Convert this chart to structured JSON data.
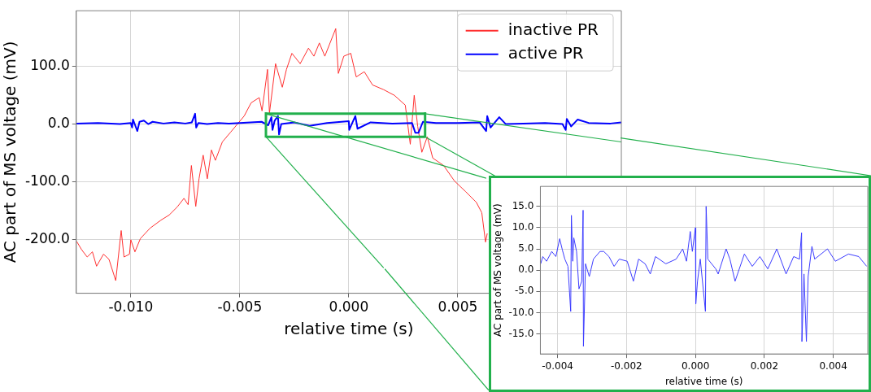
{
  "chart_data": [
    {
      "type": "line",
      "xlabel": "relative time (s)",
      "ylabel": "AC part of MS voltage (mV)",
      "xlim": [
        -0.0125,
        0.0125
      ],
      "ylim": [
        -294,
        197
      ],
      "xticks": [
        {
          "value": -0.01,
          "label": "-0.010"
        },
        {
          "value": -0.005,
          "label": "-0.005"
        },
        {
          "value": 0,
          "label": "0.000"
        },
        {
          "value": 0.005,
          "label": "0.005"
        },
        {
          "value": 0.01,
          "label": null
        }
      ],
      "yticks": [
        {
          "value": -200,
          "label": "-200.0"
        },
        {
          "value": -100,
          "label": "-100.0"
        },
        {
          "value": 0,
          "label": "0.0"
        },
        {
          "value": 100,
          "label": "100.0"
        }
      ],
      "grid": true,
      "legend": "top right",
      "series": [
        {
          "name": "inactive PR",
          "color": "#ff3030",
          "x": [
            -0.01248,
            -0.01226,
            -0.012,
            -0.01176,
            -0.01157,
            -0.01125,
            -0.011,
            -0.01069,
            -0.01044,
            -0.01031,
            -0.01006,
            -0.01,
            -0.00981,
            -0.00956,
            -0.00912,
            -0.00862,
            -0.00824,
            -0.00787,
            -0.00756,
            -0.00737,
            -0.00722,
            -0.00702,
            -0.00687,
            -0.00668,
            -0.00649,
            -0.0063,
            -0.00612,
            -0.0058,
            -0.00542,
            -0.00511,
            -0.0048,
            -0.00448,
            -0.00411,
            -0.00398,
            -0.00373,
            -0.00364,
            -0.00336,
            -0.00305,
            -0.00286,
            -0.00261,
            -0.00223,
            -0.00185,
            -0.0016,
            -0.00135,
            -0.0011,
            -0.0006,
            -0.00048,
            -0.00023,
            9e-05,
            0.00034,
            0.00071,
            0.00109,
            0.00159,
            0.00209,
            0.00259,
            0.00282,
            0.003,
            0.00316,
            0.00335,
            0.0036,
            0.00385,
            0.00435,
            0.00485,
            0.00535,
            0.00585,
            0.0061,
            0.00627,
            0.00635
          ],
          "values": [
            -204,
            -218,
            -231,
            -222,
            -247,
            -226,
            -235,
            -272,
            -185,
            -231,
            -226,
            -201,
            -222,
            -199,
            -181,
            -167,
            -158,
            -144,
            -129,
            -140,
            -72,
            -143,
            -95,
            -54,
            -95,
            -45,
            -63,
            -31,
            -14,
            0,
            14,
            37,
            46,
            23,
            95,
            19,
            105,
            64,
            95,
            123,
            105,
            132,
            118,
            141,
            118,
            166,
            88,
            118,
            123,
            82,
            91,
            68,
            60,
            50,
            33,
            -35,
            50,
            -4,
            -49,
            -22,
            -59,
            -72,
            -99,
            -117,
            -136,
            -154,
            -205,
            -190
          ]
        },
        {
          "name": "active PR",
          "color": "#0000ff",
          "x": [
            -0.0125,
            -0.0115,
            -0.0105,
            -0.01,
            -0.00994,
            -0.0099,
            -0.0098,
            -0.0097,
            -0.0096,
            -0.0094,
            -0.0092,
            -0.009,
            -0.0085,
            -0.008,
            -0.0075,
            -0.0072,
            -0.00705,
            -0.007,
            -0.0069,
            -0.0065,
            -0.006,
            -0.0055,
            -0.005,
            -0.0045,
            -0.004,
            -0.0037,
            -0.00355,
            -0.0035,
            -0.0034,
            -0.00325,
            -0.0032,
            -0.0031,
            -0.0025,
            -0.0018,
            -0.001,
            0,
            2e-05,
            0.0003,
            0.0004,
            0.001,
            0.002,
            0.0029,
            0.00305,
            0.0032,
            0.0034,
            0.004,
            0.005,
            0.006,
            0.0063,
            0.00635,
            0.0065,
            0.0069,
            0.0072,
            0.008,
            0.009,
            0.0098,
            0.00995,
            0.01,
            0.0102,
            0.0105,
            0.011,
            0.012,
            0.0125
          ],
          "values": [
            1,
            2,
            0,
            2,
            -6,
            8,
            -2,
            -12,
            4,
            6,
            0,
            4,
            1,
            3,
            1,
            3,
            18,
            -6,
            2,
            0,
            2,
            1,
            2,
            3,
            4,
            -2,
            12,
            -10,
            6,
            14,
            -18,
            0,
            3,
            -3,
            2,
            5,
            -10,
            14,
            -8,
            3,
            1,
            2,
            -15,
            -15,
            4,
            2,
            2,
            3,
            -12,
            14,
            -6,
            12,
            0,
            1,
            2,
            0,
            -10,
            9,
            -4,
            8,
            2,
            1,
            3
          ]
        },
        {
          "color": "#22b04c",
          "x": [
            -0.0038,
            0.0035
          ],
          "values": [
            18,
            18
          ]
        },
        {
          "color": "#22b04c",
          "x": [
            -0.0038,
            0.0035
          ],
          "values": [
            -22,
            -22
          ]
        },
        {
          "color": "#22b04c",
          "x": [
            -0.0038,
            0.0063
          ],
          "values": [
            18,
            -94
          ]
        },
        {
          "color": "#22b04c",
          "x": [
            -0.0038,
            0.0016
          ],
          "values": [
            -22,
            -250
          ]
        },
        {
          "color": "#22b04c",
          "x": [
            0.0035,
            0.0125
          ],
          "values": [
            18,
            -31
          ]
        },
        {
          "color": "#22b04c",
          "x": [
            0.0035,
            0.0068
          ],
          "values": [
            -22,
            -92
          ]
        }
      ]
    },
    {
      "type": "line",
      "xlabel": "relative time (s)",
      "ylabel": "AC part of MS voltage (mV)",
      "xlim": [
        -0.0045,
        0.005
      ],
      "ylim": [
        -19.7,
        19.7
      ],
      "xticks": [
        {
          "value": -0.004,
          "label": "-0.004"
        },
        {
          "value": -0.002,
          "label": "-0.002"
        },
        {
          "value": 0,
          "label": "0.000"
        },
        {
          "value": 0.002,
          "label": "0.002"
        },
        {
          "value": 0.004,
          "label": "0.004"
        }
      ],
      "yticks": [
        {
          "value": -15,
          "label": "-15.0"
        },
        {
          "value": -10,
          "label": "-10.0"
        },
        {
          "value": -5,
          "label": "-5.0"
        },
        {
          "value": 0,
          "label": "0.0"
        },
        {
          "value": 5,
          "label": "5.0"
        },
        {
          "value": 10,
          "label": "10.0"
        },
        {
          "value": 15,
          "label": "15.0"
        }
      ],
      "grid": true,
      "series": [
        {
          "color": "#3c3cff",
          "x": [
            -0.00449,
            -0.00443,
            -0.00432,
            -0.00417,
            -0.00405,
            -0.00394,
            -0.00386,
            -0.00379,
            -0.0037,
            -0.00362,
            -0.0036,
            -0.00356,
            -0.00353,
            -0.00345,
            -0.00338,
            -0.0033,
            -0.00326,
            -0.00325,
            -0.00319,
            -0.00308,
            -0.00296,
            -0.00277,
            -0.00266,
            -0.00251,
            -0.00236,
            -0.00221,
            -0.00198,
            -0.0018,
            -0.00165,
            -0.00146,
            -0.00131,
            -0.00116,
            -0.00086,
            -0.00056,
            -0.00037,
            -0.00026,
            -0.00015,
            -9e-05,
            0,
            1e-05,
            6e-05,
            0.00014,
            0.00029,
            0.00031,
            0.00036,
            0.00059,
            0.00066,
            0.00089,
            0.001,
            0.00115,
            0.00142,
            0.00165,
            0.00187,
            0.0021,
            0.00236,
            0.00263,
            0.00285,
            0.00302,
            0.00308,
            0.00309,
            0.00315,
            0.00322,
            0.00327,
            0.00338,
            0.00346,
            0.00383,
            0.00406,
            0.00444,
            0.00474,
            0.00497
          ],
          "values": [
            1.5,
            3.2,
            2.1,
            4.4,
            3.2,
            7.4,
            4.7,
            2.6,
            0.9,
            -9.7,
            12.9,
            2.1,
            7.6,
            4.4,
            -4.4,
            -2.6,
            14.1,
            -17.9,
            1.5,
            -1.5,
            2.6,
            4.4,
            4.4,
            3.2,
            0.9,
            2.6,
            2.1,
            -2.6,
            2.6,
            1.5,
            -0.9,
            3.2,
            1.5,
            2.6,
            5.0,
            2.1,
            9.1,
            4.4,
            10.0,
            -7.9,
            -2.6,
            2.6,
            -9.7,
            15.0,
            2.6,
            0.3,
            -0.9,
            5.0,
            2.6,
            -2.6,
            3.8,
            0.9,
            3.2,
            0.3,
            5.0,
            -0.9,
            3.2,
            2.6,
            8.8,
            -16.8,
            -0.9,
            -16.8,
            -1.5,
            5.6,
            2.6,
            5.0,
            2.1,
            3.8,
            3.2,
            0.9
          ]
        }
      ]
    }
  ]
}
